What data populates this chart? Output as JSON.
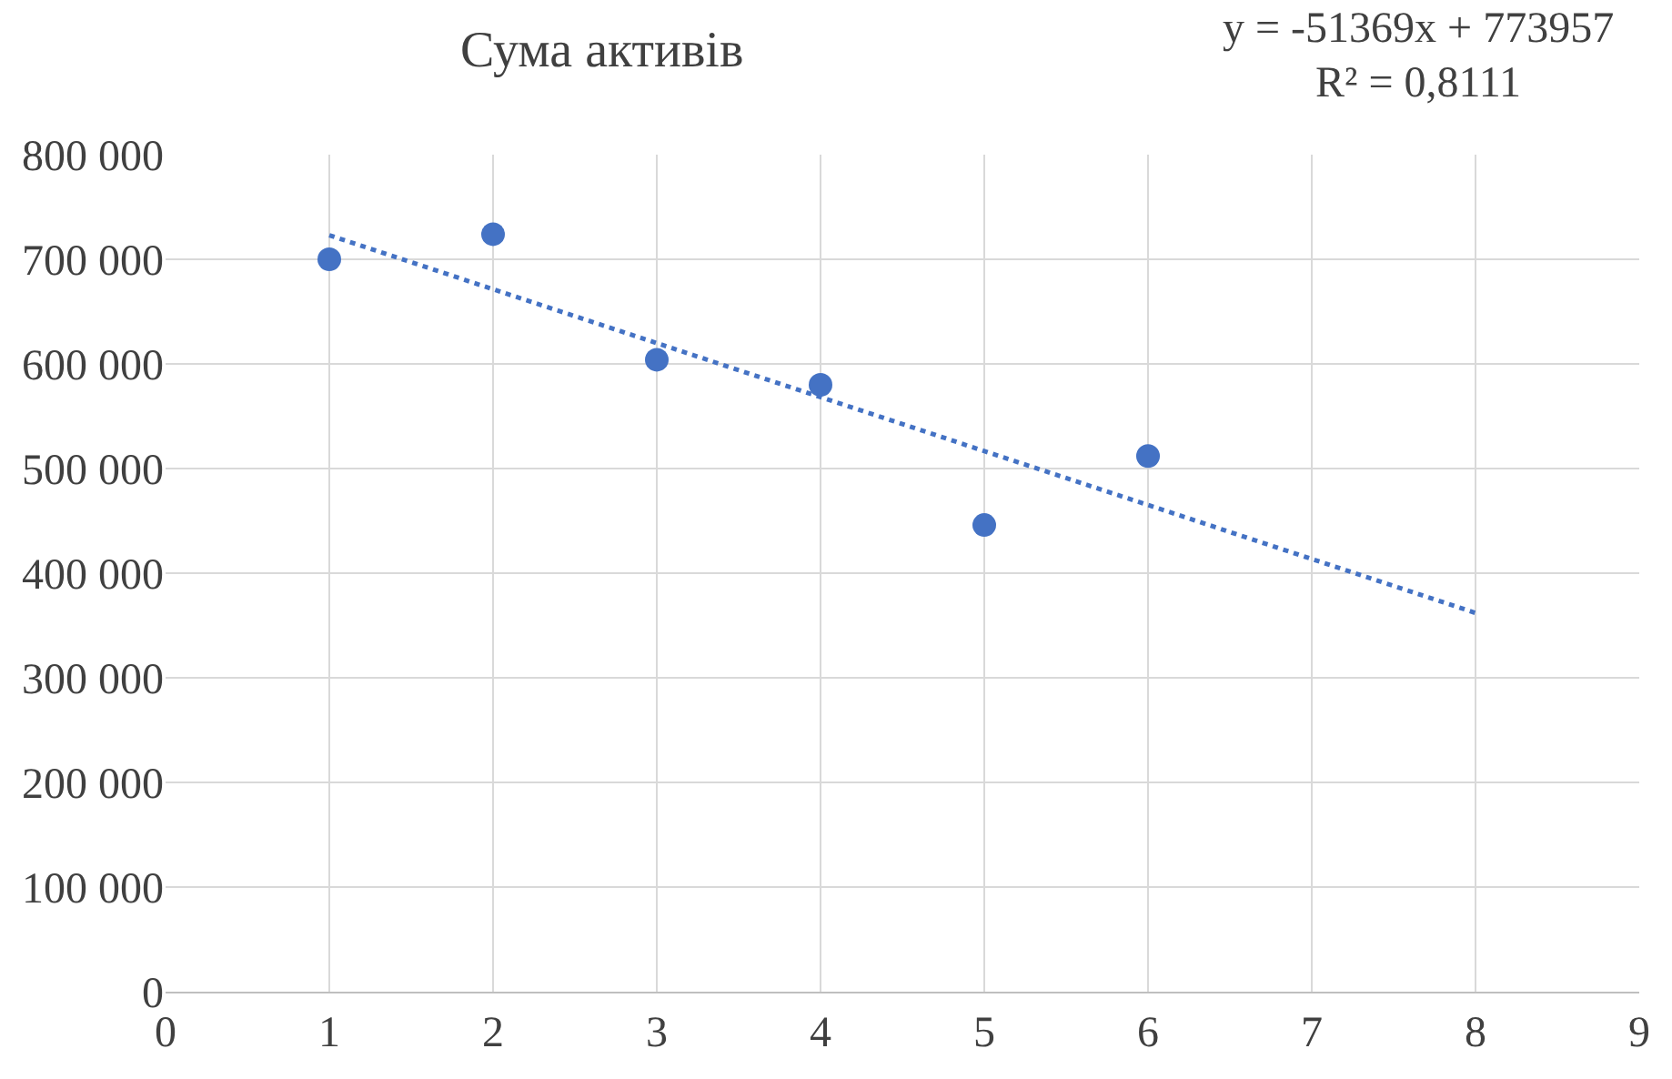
{
  "chart_data": {
    "type": "scatter",
    "title": "Сума активів",
    "annotations": [
      "y = -51369x + 773957",
      "R² = 0,8111"
    ],
    "series": [
      {
        "color": "#4472c4",
        "x": [
          1,
          2,
          3,
          4,
          5,
          6
        ],
        "values": [
          700000,
          724000,
          604000,
          580000,
          446000,
          512000
        ],
        "marker": "circle"
      },
      {
        "type": "line",
        "color": "#4472c4",
        "x": [
          1,
          8
        ],
        "values": [
          723000,
          362000
        ],
        "line_style": "dotted",
        "marker": "none"
      }
    ],
    "xlim": [
      0,
      9
    ],
    "xticks": [
      0,
      1,
      2,
      3,
      4,
      5,
      6,
      7,
      8,
      9
    ],
    "ylim": [
      0,
      800000
    ],
    "yticks": [
      {
        "value": 0,
        "label": "0"
      },
      {
        "value": 100000,
        "label": "100 000"
      },
      {
        "value": 200000,
        "label": "200 000"
      },
      {
        "value": 300000,
        "label": "300 000"
      },
      {
        "value": 400000,
        "label": "400 000"
      },
      {
        "value": 500000,
        "label": "500 000"
      },
      {
        "value": 600000,
        "label": "600 000"
      },
      {
        "value": 700000,
        "label": "700 000"
      },
      {
        "value": 800000,
        "label": "800 000"
      }
    ],
    "grid": true
  }
}
